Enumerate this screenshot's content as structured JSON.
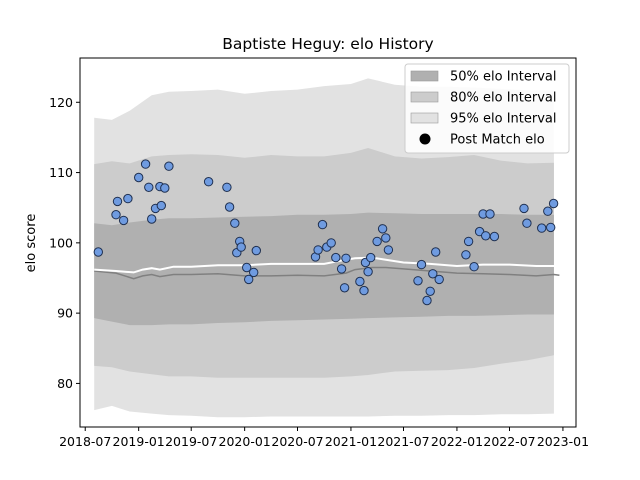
{
  "chart_data": {
    "type": "line",
    "title": "Baptiste Heguy: elo History",
    "xlabel": "",
    "ylabel": "elo score",
    "xlim": [
      "2018-06-13",
      "2023-02-15"
    ],
    "ylim": [
      73.8,
      126.3
    ],
    "x_ticks": [
      "2018-07",
      "2019-01",
      "2019-07",
      "2020-01",
      "2020-07",
      "2021-01",
      "2021-07",
      "2022-01",
      "2022-07",
      "2023-01"
    ],
    "y_ticks": [
      80,
      90,
      100,
      110,
      120
    ],
    "grid": false,
    "legend_position": "top-right",
    "legend": [
      {
        "label": "50% elo Interval",
        "kind": "patch",
        "color": "#b0b0b0"
      },
      {
        "label": "80% elo Interval",
        "kind": "patch",
        "color": "#cccccc"
      },
      {
        "label": "95% elo Interval",
        "kind": "patch",
        "color": "#e2e2e2"
      },
      {
        "label": "Post Match elo",
        "kind": "marker",
        "color": "#000000"
      }
    ],
    "colors": {
      "band_50": "#b0b0b0",
      "band_80": "#cccccc",
      "band_95": "#e2e2e2",
      "mean_line": "#ffffff",
      "median_line": "#808080",
      "point_fill": "#6f9be0",
      "point_edge": "#1f3050"
    },
    "series": [
      {
        "kind": "interval",
        "band": "95",
        "x": [
          "2018-08-01",
          "2018-10-01",
          "2018-12-01",
          "2019-02-15",
          "2019-04-15",
          "2019-07-01",
          "2019-10-01",
          "2020-01-01",
          "2020-04-01",
          "2020-07-01",
          "2020-10-01",
          "2021-01-01",
          "2021-03-01",
          "2021-06-01",
          "2021-09-01",
          "2021-12-01",
          "2022-03-01",
          "2022-06-01",
          "2022-09-01",
          "2022-12-01"
        ],
        "upper": [
          117.8,
          117.5,
          118.8,
          121.0,
          121.5,
          121.6,
          121.8,
          121.2,
          121.6,
          121.8,
          122.3,
          122.6,
          123.4,
          122.5,
          122.2,
          122.2,
          122.1,
          121.9,
          121.7,
          121.7
        ],
        "lower": [
          76.2,
          76.8,
          76.0,
          75.7,
          75.5,
          75.4,
          75.2,
          75.2,
          75.3,
          75.3,
          75.3,
          75.3,
          75.3,
          75.4,
          75.4,
          75.5,
          75.5,
          75.6,
          75.6,
          75.7
        ]
      },
      {
        "kind": "interval",
        "band": "80",
        "x": [
          "2018-08-01",
          "2018-10-01",
          "2018-12-01",
          "2019-02-15",
          "2019-04-15",
          "2019-07-01",
          "2019-10-01",
          "2020-01-01",
          "2020-04-01",
          "2020-07-01",
          "2020-10-01",
          "2021-01-01",
          "2021-03-01",
          "2021-06-01",
          "2021-09-01",
          "2021-12-01",
          "2022-03-01",
          "2022-06-01",
          "2022-09-01",
          "2022-12-01"
        ],
        "upper": [
          111.2,
          111.6,
          111.3,
          112.3,
          112.5,
          112.6,
          112.5,
          112.1,
          112.5,
          112.3,
          112.3,
          112.8,
          113.5,
          112.3,
          112.0,
          112.2,
          112.5,
          111.7,
          111.3,
          111.4
        ],
        "lower": [
          82.5,
          82.3,
          81.7,
          81.3,
          81.0,
          81.0,
          80.8,
          80.8,
          80.8,
          80.8,
          80.8,
          81.0,
          81.2,
          81.7,
          81.8,
          81.9,
          82.2,
          82.8,
          83.3,
          84.0
        ]
      },
      {
        "kind": "interval",
        "band": "50",
        "x": [
          "2018-08-01",
          "2018-10-01",
          "2018-12-01",
          "2019-02-15",
          "2019-04-15",
          "2019-07-01",
          "2019-10-01",
          "2020-01-01",
          "2020-04-01",
          "2020-07-01",
          "2020-10-01",
          "2021-01-01",
          "2021-03-01",
          "2021-06-01",
          "2021-09-01",
          "2021-12-01",
          "2022-03-01",
          "2022-06-01",
          "2022-09-01",
          "2022-12-01"
        ],
        "upper": [
          102.8,
          102.5,
          102.9,
          103.3,
          103.5,
          103.5,
          103.6,
          103.7,
          103.8,
          104.0,
          104.0,
          104.1,
          104.3,
          104.2,
          104.1,
          104.1,
          104.1,
          104.1,
          104.0,
          104.0
        ],
        "lower": [
          89.3,
          88.8,
          88.3,
          88.3,
          88.4,
          88.4,
          88.6,
          88.7,
          88.9,
          89.0,
          89.1,
          89.2,
          89.3,
          89.4,
          89.5,
          89.6,
          89.6,
          89.7,
          89.8,
          89.8
        ]
      },
      {
        "kind": "line",
        "role": "median",
        "x": [
          "2018-08-01",
          "2018-10-15",
          "2018-12-15",
          "2019-01-15",
          "2019-02-15",
          "2019-03-15",
          "2019-05-01",
          "2019-07-01",
          "2019-10-01",
          "2020-01-01",
          "2020-04-01",
          "2020-07-01",
          "2020-10-01",
          "2020-12-15",
          "2021-01-15",
          "2021-03-15",
          "2021-05-01",
          "2021-07-01",
          "2021-10-01",
          "2022-01-01",
          "2022-04-01",
          "2022-07-01",
          "2022-10-01",
          "2022-12-01",
          "2022-12-20"
        ],
        "y": [
          96.0,
          95.7,
          94.9,
          95.3,
          95.5,
          95.2,
          95.5,
          95.5,
          95.6,
          95.3,
          95.3,
          95.4,
          95.3,
          95.7,
          96.2,
          96.5,
          96.5,
          96.3,
          96.0,
          95.7,
          95.6,
          95.5,
          95.3,
          95.5,
          95.4
        ]
      },
      {
        "kind": "line",
        "role": "mean",
        "x": [
          "2018-08-01",
          "2018-10-15",
          "2018-12-15",
          "2019-01-15",
          "2019-02-15",
          "2019-03-15",
          "2019-05-01",
          "2019-07-01",
          "2019-10-01",
          "2020-01-01",
          "2020-04-01",
          "2020-07-01",
          "2020-10-01",
          "2020-12-15",
          "2021-01-15",
          "2021-03-15",
          "2021-05-01",
          "2021-07-01",
          "2021-10-01",
          "2022-01-01",
          "2022-04-01",
          "2022-07-01",
          "2022-10-01",
          "2022-12-01",
          "2022-12-20"
        ],
        "y": [
          96.2,
          96.0,
          95.8,
          96.2,
          96.4,
          96.2,
          96.6,
          96.6,
          96.8,
          96.8,
          97.0,
          97.0,
          97.0,
          97.6,
          97.8,
          97.9,
          97.6,
          97.2,
          97.0,
          96.7,
          96.9,
          96.9,
          96.7,
          96.7,
          96.7
        ]
      },
      {
        "kind": "scatter",
        "name": "Post Match elo",
        "x": [
          "2018-08-15",
          "2018-10-15",
          "2018-10-20",
          "2018-11-10",
          "2018-11-25",
          "2019-01-01",
          "2019-01-25",
          "2019-02-05",
          "2019-02-15",
          "2019-02-28",
          "2019-03-15",
          "2019-03-20",
          "2019-04-01",
          "2019-04-15",
          "2019-08-30",
          "2019-11-01",
          "2019-11-10",
          "2019-11-28",
          "2019-12-05",
          "2019-12-15",
          "2019-12-20",
          "2020-01-08",
          "2020-01-15",
          "2020-02-01",
          "2020-02-10",
          "2020-09-01",
          "2020-09-10",
          "2020-09-25",
          "2020-10-10",
          "2020-10-25",
          "2020-11-10",
          "2020-11-30",
          "2020-12-10",
          "2020-12-15",
          "2021-02-01",
          "2021-02-15",
          "2021-02-20",
          "2021-03-01",
          "2021-03-10",
          "2021-04-01",
          "2021-04-20",
          "2021-05-01",
          "2021-05-10",
          "2021-08-20",
          "2021-09-01",
          "2021-09-20",
          "2021-10-01",
          "2021-10-10",
          "2021-10-20",
          "2021-11-01",
          "2022-02-01",
          "2022-02-10",
          "2022-03-01",
          "2022-03-20",
          "2022-04-01",
          "2022-04-10",
          "2022-04-25",
          "2022-05-10",
          "2022-08-20",
          "2022-08-30",
          "2022-10-20",
          "2022-11-10",
          "2022-11-20",
          "2022-11-30"
        ],
        "y": [
          98.7,
          104.0,
          105.9,
          103.2,
          106.3,
          109.3,
          111.2,
          107.9,
          103.4,
          104.9,
          108.0,
          105.3,
          107.8,
          110.9,
          108.7,
          107.9,
          105.1,
          102.8,
          98.6,
          100.2,
          99.4,
          96.5,
          94.8,
          95.8,
          98.9,
          98.0,
          99.0,
          102.6,
          99.4,
          100.0,
          97.9,
          96.3,
          93.6,
          97.8,
          94.5,
          93.2,
          97.2,
          95.9,
          97.9,
          100.2,
          102.0,
          100.7,
          99.0,
          94.6,
          96.9,
          91.8,
          93.1,
          95.6,
          98.7,
          94.8,
          98.3,
          100.2,
          96.6,
          101.6,
          104.1,
          101.0,
          104.1,
          100.9,
          104.9,
          102.8,
          102.1,
          104.5,
          102.2,
          105.6
        ]
      }
    ]
  }
}
